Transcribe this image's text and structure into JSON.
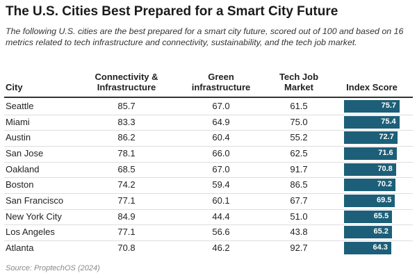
{
  "header": {
    "title": "The U.S. Cities Best Prepared for a Smart City Future",
    "subtitle": "The following U.S. cities are the best prepared for a smart city future, scored out of 100 and based on 16 metrics related to tech infrastructure and connectivity, sustainability, and the tech job market."
  },
  "table": {
    "columns": [
      "City",
      "Connectivity &\nInfrastructure",
      "Green\ninfrastructure",
      "Tech Job\nMarket",
      "Index Score"
    ],
    "rows": [
      [
        "Seattle",
        "85.7",
        "67.0",
        "61.5",
        75.7
      ],
      [
        "Miami",
        "83.3",
        "64.9",
        "75.0",
        75.4
      ],
      [
        "Austin",
        "86.2",
        "60.4",
        "55.2",
        72.7
      ],
      [
        "San Jose",
        "78.1",
        "66.0",
        "62.5",
        71.6
      ],
      [
        "Oakland",
        "68.5",
        "67.0",
        "91.7",
        70.8
      ],
      [
        "Boston",
        "74.2",
        "59.4",
        "86.5",
        70.2
      ],
      [
        "San Francisco",
        "77.1",
        "60.1",
        "67.7",
        69.5
      ],
      [
        "New York City",
        "84.9",
        "44.4",
        "51.0",
        65.5
      ],
      [
        "Los Angeles",
        "77.1",
        "56.6",
        "43.8",
        65.2
      ],
      [
        "Atlanta",
        "70.8",
        "46.2",
        "92.7",
        64.3
      ]
    ],
    "bar_color": "#1d5f78"
  },
  "footer": {
    "source": "Source: ProptechOS (2024)"
  }
}
